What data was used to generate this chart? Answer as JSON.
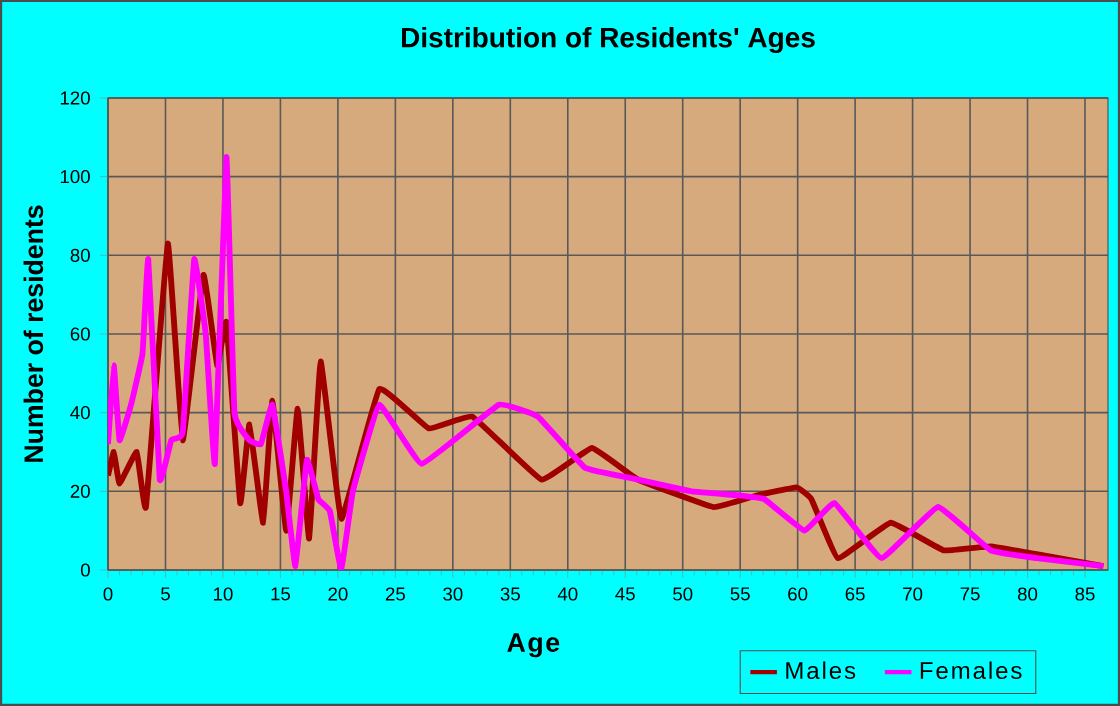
{
  "chart_data": {
    "type": "line",
    "title": "Distribution of Residents' Ages",
    "xlabel": "Age",
    "ylabel": "Number of residents",
    "xlim": [
      0,
      87
    ],
    "xticks": [
      0,
      5,
      10,
      15,
      20,
      25,
      30,
      35,
      40,
      45,
      50,
      55,
      60,
      65,
      70,
      75,
      80,
      85
    ],
    "ylim": [
      0,
      120
    ],
    "yticks": [
      0,
      20,
      40,
      60,
      80,
      100,
      120
    ],
    "grid": true,
    "legend": "bottom right",
    "marker": "none",
    "line_style": "solid",
    "series": [
      {
        "name": "Males",
        "color": "#a00000",
        "x": [
          0,
          0.5,
          1,
          2.5,
          3.3,
          5.2,
          6.5,
          8.3,
          9.5,
          10.3,
          11.5,
          12.3,
          13.5,
          14.3,
          15.5,
          16.5,
          17.5,
          18.5,
          20.3,
          23.6,
          27.9,
          31.7,
          37.7,
          42.1,
          46.1,
          52.7,
          56.5,
          59.9,
          61.2,
          63.5,
          68.1,
          72.7,
          76.8,
          80.8,
          86.6
        ],
        "values": [
          24,
          30,
          22,
          30,
          16,
          83,
          33,
          75,
          52,
          63,
          17,
          37,
          12,
          43,
          10,
          41,
          8,
          53,
          13,
          46,
          36,
          39,
          23,
          31,
          23,
          16,
          19,
          21,
          18,
          3,
          12,
          5,
          6,
          4,
          1
        ]
      },
      {
        "name": "Females",
        "color": "#ff00ff",
        "x": [
          0,
          0.5,
          1,
          2,
          3,
          3.5,
          4.5,
          5.5,
          6.5,
          7.5,
          8.5,
          9.3,
          10.3,
          11,
          12.3,
          13.3,
          14.3,
          15.5,
          16.3,
          17.3,
          18.3,
          19.3,
          20.3,
          21.3,
          23.6,
          27.3,
          34,
          37.4,
          41.5,
          46.1,
          50.8,
          54.8,
          57.1,
          60.6,
          63.2,
          67.3,
          72.2,
          76.8,
          80.8,
          86.6
        ],
        "values": [
          32,
          52,
          33,
          42,
          55,
          79,
          23,
          33,
          35,
          79,
          60,
          27,
          105,
          40,
          33,
          32,
          42,
          20,
          1,
          28,
          18,
          15,
          0,
          20,
          42,
          27,
          42,
          39,
          26,
          23,
          20,
          19,
          18,
          10,
          17,
          3,
          16,
          5,
          3,
          1
        ]
      }
    ]
  }
}
